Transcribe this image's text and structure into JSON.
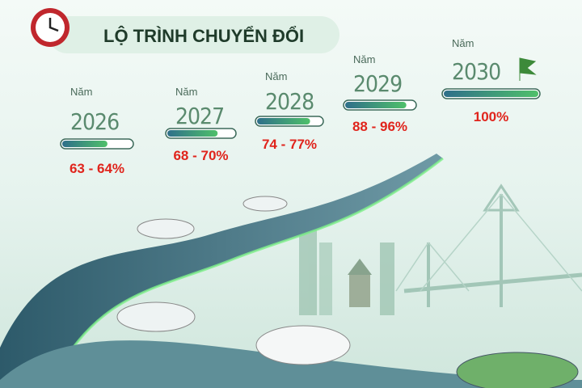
{
  "header": {
    "title": "LỘ TRÌNH CHUYỂN ĐỔI"
  },
  "milestones": [
    {
      "label": "Năm",
      "year": "2026",
      "range": "63 - 64%",
      "progress": 65
    },
    {
      "label": "Năm",
      "year": "2027",
      "range": "68 - 70%",
      "progress": 75
    },
    {
      "label": "Năm",
      "year": "2028",
      "range": "74 - 77%",
      "progress": 82
    },
    {
      "label": "Năm",
      "year": "2029",
      "range": "88 - 96%",
      "progress": 88
    },
    {
      "label": "Năm",
      "year": "2030",
      "range": "100%",
      "progress": 100
    }
  ]
}
